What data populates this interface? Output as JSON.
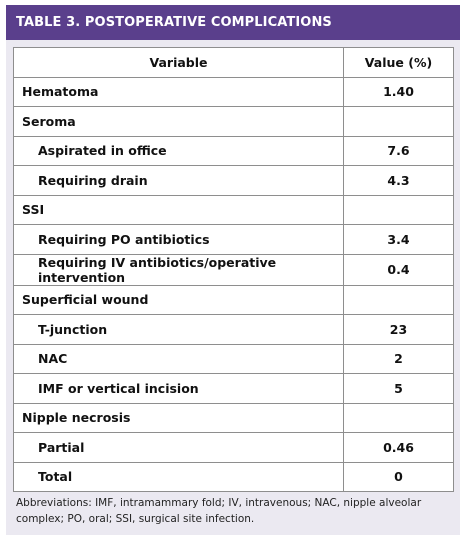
{
  "title": "TABLE 3. POSTOPERATIVE COMPLICATIONS",
  "columns": {
    "variable": "Variable",
    "value": "Value (%)"
  },
  "rows": [
    {
      "label": "Hematoma",
      "value": "1.40",
      "indent": false
    },
    {
      "label": "Seroma",
      "value": "",
      "indent": false
    },
    {
      "label": "Aspirated in office",
      "value": "7.6",
      "indent": true
    },
    {
      "label": "Requiring drain",
      "value": "4.3",
      "indent": true
    },
    {
      "label": "SSI",
      "value": "",
      "indent": false
    },
    {
      "label": "Requiring PO antibiotics",
      "value": "3.4",
      "indent": true
    },
    {
      "label": "Requiring IV antibiotics/operative intervention",
      "value": "0.4",
      "indent": true
    },
    {
      "label": "Superficial wound",
      "value": "",
      "indent": false
    },
    {
      "label": "T-junction",
      "value": "23",
      "indent": true
    },
    {
      "label": "NAC",
      "value": "2",
      "indent": true
    },
    {
      "label": "IMF or vertical incision",
      "value": "5",
      "indent": true
    },
    {
      "label": "Nipple necrosis",
      "value": "",
      "indent": false
    },
    {
      "label": "Partial",
      "value": "0.46",
      "indent": true
    },
    {
      "label": "Total",
      "value": "0",
      "indent": true
    }
  ],
  "footnote": "Abbreviations: IMF, intramammary fold; IV, intravenous; NAC, nipple alveolar complex; PO, oral; SSI, surgical site infection.",
  "colors": {
    "header_bg": "#5a3f8c",
    "card_bg": "#ebe9f1",
    "border": "#8e8e8e"
  }
}
